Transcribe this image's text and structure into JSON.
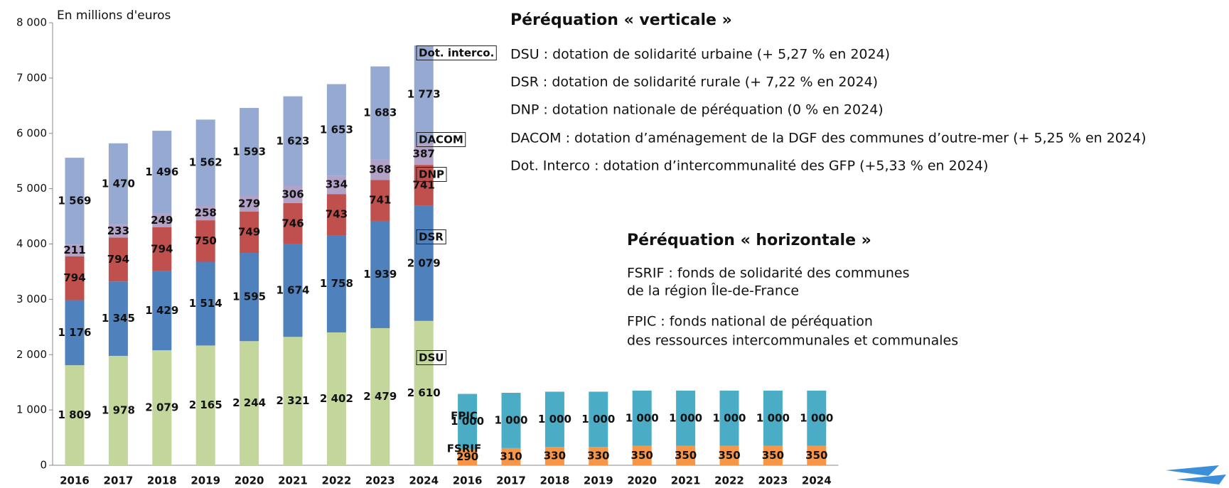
{
  "chart_data": {
    "type": "stacked_bar",
    "axis_label": "En millions d'euros",
    "categories": [
      "2016",
      "2017",
      "2018",
      "2019",
      "2020",
      "2021",
      "2022",
      "2023",
      "2024",
      "2016",
      "2017",
      "2018",
      "2019",
      "2020",
      "2021",
      "2022",
      "2023",
      "2024"
    ],
    "ylim": [
      0,
      8000
    ],
    "yticks": [
      0,
      {
        "value": 1000,
        "label": "1 000"
      },
      {
        "value": 2000,
        "label": "2 000"
      },
      {
        "value": 3000,
        "label": "3 000"
      },
      {
        "value": 4000,
        "label": "4 000"
      },
      {
        "value": 5000,
        "label": "5 000"
      },
      {
        "value": 6000,
        "label": "6 000"
      },
      {
        "value": 7000,
        "label": "7 000"
      },
      {
        "value": 8000,
        "label": "8 000"
      }
    ],
    "series": [
      {
        "name": "DSU",
        "color": "#c3d69b",
        "values": [
          1809,
          1978,
          2079,
          2165,
          2244,
          2321,
          2402,
          2479,
          2610,
          null,
          null,
          null,
          null,
          null,
          null,
          null,
          null,
          null
        ],
        "value_labels": [
          "1 809",
          "1 978",
          "2 079",
          "2 165",
          "2 244",
          "2 321",
          "2 402",
          "2 479",
          "2 610",
          null,
          null,
          null,
          null,
          null,
          null,
          null,
          null,
          null
        ]
      },
      {
        "name": "DSR",
        "color": "#4f81bd",
        "values": [
          1176,
          1345,
          1429,
          1514,
          1595,
          1674,
          1758,
          1939,
          2079,
          null,
          null,
          null,
          null,
          null,
          null,
          null,
          null,
          null
        ],
        "value_labels": [
          "1 176",
          "1 345",
          "1 429",
          "1 514",
          "1 595",
          "1 674",
          "1 758",
          "1 939",
          "2 079",
          null,
          null,
          null,
          null,
          null,
          null,
          null,
          null,
          null
        ]
      },
      {
        "name": "DNP",
        "color": "#c0504d",
        "values": [
          794,
          794,
          794,
          750,
          749,
          746,
          743,
          741,
          741,
          null,
          null,
          null,
          null,
          null,
          null,
          null,
          null,
          null
        ]
      },
      {
        "name": "DACOM",
        "color": "#b3a2c7",
        "values": [
          211,
          233,
          249,
          258,
          279,
          306,
          334,
          368,
          387,
          null,
          null,
          null,
          null,
          null,
          null,
          null,
          null,
          null
        ]
      },
      {
        "name": "Dot. interco.",
        "color": "#95a9d3",
        "values": [
          1569,
          1470,
          1496,
          1562,
          1593,
          1623,
          1653,
          1683,
          1773,
          null,
          null,
          null,
          null,
          null,
          null,
          null,
          null,
          null
        ],
        "value_labels": [
          "1 569",
          "1 470",
          "1 496",
          "1 562",
          "1 593",
          "1 623",
          "1 653",
          "1 683",
          "1 773",
          null,
          null,
          null,
          null,
          null,
          null,
          null,
          null,
          null
        ]
      },
      {
        "name": "FSRIF",
        "color": "#f79646",
        "values": [
          null,
          null,
          null,
          null,
          null,
          null,
          null,
          null,
          null,
          290,
          310,
          330,
          330,
          350,
          350,
          350,
          350,
          350
        ]
      },
      {
        "name": "FPIC",
        "color": "#4bacc6",
        "values": [
          null,
          null,
          null,
          null,
          null,
          null,
          null,
          null,
          null,
          1000,
          1000,
          1000,
          1000,
          1000,
          1000,
          1000,
          1000,
          1000
        ],
        "value_labels": [
          null,
          null,
          null,
          null,
          null,
          null,
          null,
          null,
          null,
          "1 000",
          "1 000",
          "1 000",
          "1 000",
          "1 000",
          "1 000",
          "1 000",
          "1 000",
          "1 000"
        ]
      }
    ],
    "notes": [
      {
        "title": "Péréquation « verticale »",
        "items": [
          [
            "DSU : dotation de solidarité urbaine (+ 5,27 % en 2024)"
          ],
          [
            "DSR : dotation de solidarité rurale (+ 7,22 % en 2024)"
          ],
          [
            "DNP : dotation nationale de péréquation (0 % en 2024)"
          ],
          [
            "DACOM : dotation d’aménagement de la DGF des communes d’outre-mer (+ 5,25 % en 2024)"
          ],
          [
            "Dot. Interco : dotation d’intercommunalité des GFP (+5,33 % en 2024)"
          ]
        ]
      },
      {
        "title": "Péréquation « horizontale »",
        "items": [
          [
            "FSRIF : fonds de solidarité des communes",
            "de la région Île-de-France"
          ],
          [
            "FPIC : fonds national de péréquation",
            "des ressources intercommunales et communales"
          ]
        ]
      }
    ]
  }
}
